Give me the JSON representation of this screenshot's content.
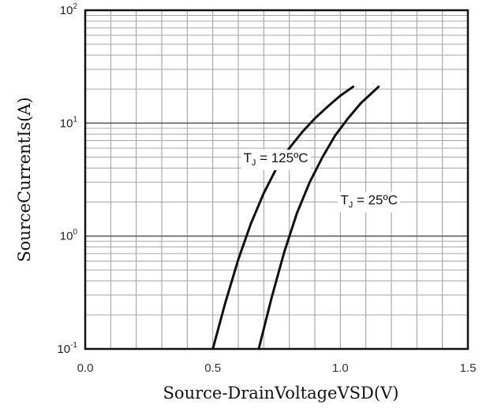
{
  "chart_data": {
    "type": "line",
    "xlabel": "Source-DrainVoltageVSD(V)",
    "ylabel": "SourceCurrentIs(A)",
    "xlim": [
      0.0,
      1.5
    ],
    "ylim": [
      0.1,
      100
    ],
    "yscale": "log",
    "grid": true,
    "x_ticks": [
      "0.0",
      "0.5",
      "1.0",
      "1.5"
    ],
    "y_ticks": [
      {
        "base": "10",
        "exp": "-1",
        "value": 0.1
      },
      {
        "base": "10",
        "exp": "0",
        "value": 1
      },
      {
        "base": "10",
        "exp": "1",
        "value": 10
      },
      {
        "base": "10",
        "exp": "2",
        "value": 100
      }
    ],
    "series": [
      {
        "annotation_main": "T",
        "annotation_sub": "J",
        "annotation_rest": " = 125ºC",
        "annotation_at": [
          0.62,
          4.5
        ],
        "x": [
          0.5,
          0.55,
          0.6,
          0.65,
          0.7,
          0.75,
          0.8,
          0.85,
          0.9,
          0.95,
          1.0,
          1.05
        ],
        "y": [
          0.1,
          0.26,
          0.62,
          1.3,
          2.4,
          4.0,
          6.0,
          8.3,
          11.0,
          14.0,
          17.5,
          21.0
        ]
      },
      {
        "annotation_main": "T",
        "annotation_sub": "J",
        "annotation_rest": " = 25ºC",
        "annotation_at": [
          1.0,
          1.9
        ],
        "x": [
          0.68,
          0.73,
          0.78,
          0.83,
          0.88,
          0.93,
          0.98,
          1.03,
          1.08,
          1.15
        ],
        "y": [
          0.1,
          0.28,
          0.72,
          1.6,
          3.0,
          5.0,
          7.8,
          11.0,
          15.0,
          21.0
        ]
      }
    ]
  }
}
